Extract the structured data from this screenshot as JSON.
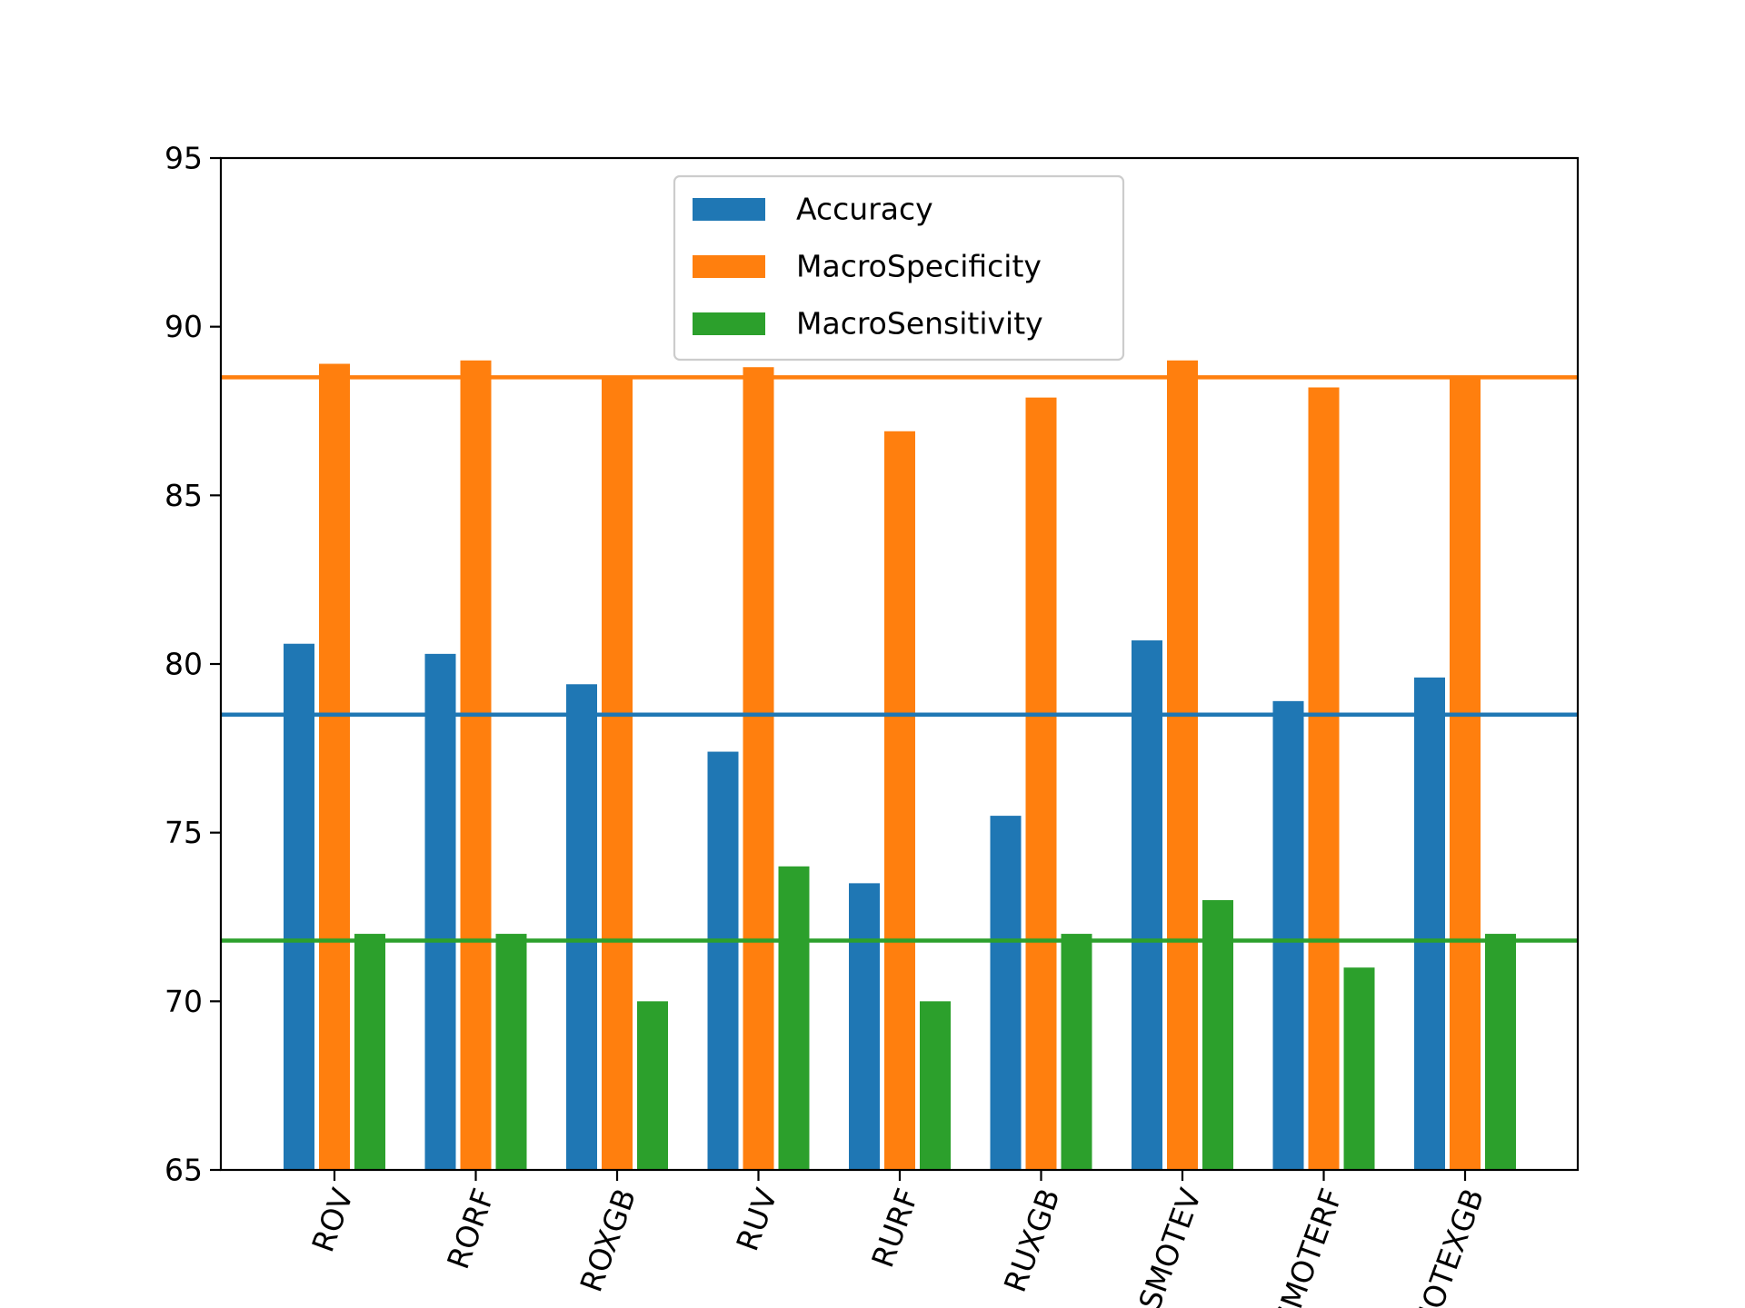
{
  "chart_data": {
    "type": "bar",
    "title": "",
    "xlabel": "",
    "ylabel": "",
    "ylim": [
      65,
      95
    ],
    "yticks": [
      65,
      70,
      75,
      80,
      85,
      90,
      95
    ],
    "categories": [
      "ROV",
      "RORF",
      "ROXGB",
      "RUV",
      "RURF",
      "RUXGB",
      "SMOTEV",
      "SMOTERF",
      "SMOTEXGB"
    ],
    "series": [
      {
        "name": "Accuracy",
        "color": "#1f77b4",
        "values": [
          80.6,
          80.3,
          79.4,
          77.4,
          73.5,
          75.5,
          80.7,
          78.9,
          79.6
        ]
      },
      {
        "name": "MacroSpecificity",
        "color": "#ff7f0e",
        "values": [
          88.9,
          89.0,
          88.5,
          88.8,
          86.9,
          87.9,
          89.0,
          88.2,
          88.5
        ]
      },
      {
        "name": "MacroSensitivity",
        "color": "#2ca02c",
        "values": [
          72.0,
          72.0,
          70.0,
          74.0,
          70.0,
          72.0,
          73.0,
          71.0,
          72.0
        ]
      }
    ],
    "reference_lines": [
      {
        "series": "Accuracy",
        "value": 78.5,
        "color": "#1f77b4"
      },
      {
        "series": "MacroSpecificity",
        "value": 88.5,
        "color": "#ff7f0e"
      },
      {
        "series": "MacroSensitivity",
        "value": 71.8,
        "color": "#2ca02c"
      }
    ],
    "legend_position": "top-center",
    "grid": false,
    "xtick_rotation_deg": -70
  }
}
